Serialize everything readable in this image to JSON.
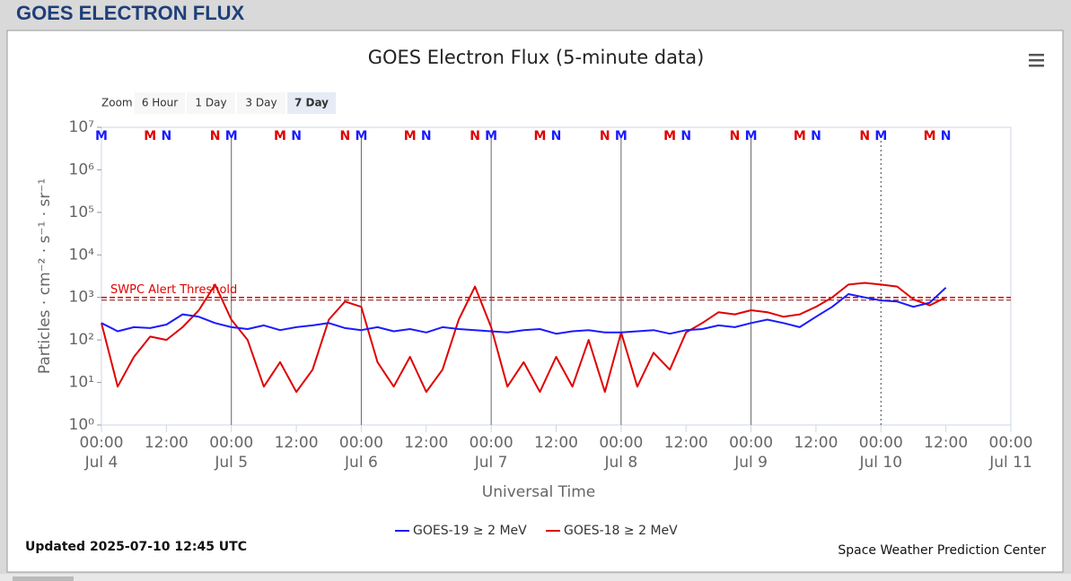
{
  "header": {
    "title": "GOES ELECTRON FLUX"
  },
  "zoom": {
    "label": "Zoom",
    "buttons": [
      "6 Hour",
      "1 Day",
      "3 Day",
      "7 Day"
    ],
    "selected": 3
  },
  "updated": "Updated 2025-07-10 12:45 UTC",
  "credit": "Space Weather Prediction Center",
  "chart_data": {
    "type": "line",
    "title": "GOES Electron Flux (5-minute data)",
    "x_label": "Universal Time",
    "y_label": "Particles · cm⁻² · s⁻¹ · sr⁻¹",
    "log_y": true,
    "xlim": [
      "Jul 4 00:00",
      "Jul 11 00:00"
    ],
    "xticks": [
      {
        "value": "Jul 4 00:00",
        "label": "00:00",
        "date": "Jul 4"
      },
      {
        "value": "Jul 4 12:00",
        "label": "12:00"
      },
      {
        "value": "Jul 5 00:00",
        "label": "00:00",
        "date": "Jul 5"
      },
      {
        "value": "Jul 5 12:00",
        "label": "12:00"
      },
      {
        "value": "Jul 6 00:00",
        "label": "00:00",
        "date": "Jul 6"
      },
      {
        "value": "Jul 6 12:00",
        "label": "12:00"
      },
      {
        "value": "Jul 7 00:00",
        "label": "00:00",
        "date": "Jul 7"
      },
      {
        "value": "Jul 7 12:00",
        "label": "12:00"
      },
      {
        "value": "Jul 8 00:00",
        "label": "00:00",
        "date": "Jul 8"
      },
      {
        "value": "Jul 8 12:00",
        "label": "12:00"
      },
      {
        "value": "Jul 9 00:00",
        "label": "00:00",
        "date": "Jul 9"
      },
      {
        "value": "Jul 9 12:00",
        "label": "12:00"
      },
      {
        "value": "Jul 10 00:00",
        "label": "00:00",
        "date": "Jul 10"
      },
      {
        "value": "Jul 10 12:00",
        "label": "12:00"
      },
      {
        "value": "Jul 11 00:00",
        "label": "00:00",
        "date": "Jul 11"
      }
    ],
    "ylim": [
      1,
      10000000
    ],
    "yticks": [
      {
        "value": 1,
        "label": "10⁰"
      },
      {
        "value": 10,
        "label": "10¹"
      },
      {
        "value": 100,
        "label": "10²"
      },
      {
        "value": 1000,
        "label": "10³"
      },
      {
        "value": 10000,
        "label": "10⁴"
      },
      {
        "value": 100000,
        "label": "10⁵"
      },
      {
        "value": 1000000,
        "label": "10⁶"
      },
      {
        "value": 10000000,
        "label": "10⁷"
      }
    ],
    "day_lines": [
      "Jul 5 00:00",
      "Jul 6 00:00",
      "Jul 7 00:00",
      "Jul 8 00:00",
      "Jul 9 00:00",
      "Jul 10 00:00"
    ],
    "threshold": {
      "value": 1000,
      "label": "SWPC Alert Threshold",
      "color": "#e00000"
    },
    "markers": [
      {
        "label": "M",
        "color": "#1a1aff",
        "x": [
          "Jul 4 00:00",
          "Jul 5 00:00",
          "Jul 6 00:00",
          "Jul 7 00:00",
          "Jul 8 00:00",
          "Jul 9 00:00",
          "Jul 10 00:00"
        ]
      },
      {
        "label": "N",
        "color": "#1a1aff",
        "x": [
          "Jul 4 12:00",
          "Jul 5 12:00",
          "Jul 6 12:00",
          "Jul 7 12:00",
          "Jul 8 12:00",
          "Jul 9 12:00",
          "Jul 10 12:00"
        ]
      },
      {
        "label": "M",
        "color": "#e00000",
        "x": [
          "Jul 4 09:00",
          "Jul 5 09:00",
          "Jul 6 09:00",
          "Jul 7 09:00",
          "Jul 8 09:00",
          "Jul 9 09:00",
          "Jul 10 09:00"
        ]
      },
      {
        "label": "N",
        "color": "#e00000",
        "x": [
          "Jul 4 21:00",
          "Jul 5 21:00",
          "Jul 6 21:00",
          "Jul 7 21:00",
          "Jul 8 21:00",
          "Jul 9 21:00"
        ]
      }
    ],
    "x": [
      "Jul 4 00:00",
      "Jul 4 03:00",
      "Jul 4 06:00",
      "Jul 4 09:00",
      "Jul 4 12:00",
      "Jul 4 15:00",
      "Jul 4 18:00",
      "Jul 4 21:00",
      "Jul 5 00:00",
      "Jul 5 03:00",
      "Jul 5 06:00",
      "Jul 5 09:00",
      "Jul 5 12:00",
      "Jul 5 15:00",
      "Jul 5 18:00",
      "Jul 5 21:00",
      "Jul 6 00:00",
      "Jul 6 03:00",
      "Jul 6 06:00",
      "Jul 6 09:00",
      "Jul 6 12:00",
      "Jul 6 15:00",
      "Jul 6 18:00",
      "Jul 6 21:00",
      "Jul 7 00:00",
      "Jul 7 03:00",
      "Jul 7 06:00",
      "Jul 7 09:00",
      "Jul 7 12:00",
      "Jul 7 15:00",
      "Jul 7 18:00",
      "Jul 7 21:00",
      "Jul 8 00:00",
      "Jul 8 03:00",
      "Jul 8 06:00",
      "Jul 8 09:00",
      "Jul 8 12:00",
      "Jul 8 15:00",
      "Jul 8 18:00",
      "Jul 8 21:00",
      "Jul 9 00:00",
      "Jul 9 03:00",
      "Jul 9 06:00",
      "Jul 9 09:00",
      "Jul 9 12:00",
      "Jul 9 15:00",
      "Jul 9 18:00",
      "Jul 9 21:00",
      "Jul 10 00:00",
      "Jul 10 03:00",
      "Jul 10 06:00",
      "Jul 10 09:00",
      "Jul 10 12:00"
    ],
    "series": [
      {
        "name": "GOES-19 ≥ 2 MeV",
        "color": "#1a1aff",
        "values": [
          250,
          160,
          200,
          190,
          230,
          400,
          350,
          250,
          200,
          180,
          220,
          170,
          200,
          220,
          250,
          190,
          170,
          200,
          160,
          180,
          150,
          200,
          180,
          170,
          160,
          150,
          170,
          180,
          140,
          160,
          170,
          150,
          150,
          160,
          170,
          140,
          170,
          180,
          220,
          200,
          250,
          300,
          250,
          200,
          350,
          600,
          1200,
          1000,
          850,
          800,
          600,
          750,
          1700
        ]
      },
      {
        "name": "GOES-18 ≥ 2 MeV",
        "color": "#e00000",
        "values": [
          250,
          8,
          40,
          120,
          100,
          200,
          500,
          2000,
          300,
          100,
          8,
          30,
          6,
          20,
          300,
          800,
          600,
          30,
          8,
          40,
          6,
          20,
          300,
          1800,
          200,
          8,
          30,
          6,
          40,
          8,
          100,
          6,
          150,
          8,
          50,
          20,
          150,
          250,
          450,
          400,
          500,
          450,
          350,
          400,
          600,
          1000,
          2000,
          2200,
          2000,
          1800,
          900,
          650,
          1000
        ]
      }
    ]
  }
}
